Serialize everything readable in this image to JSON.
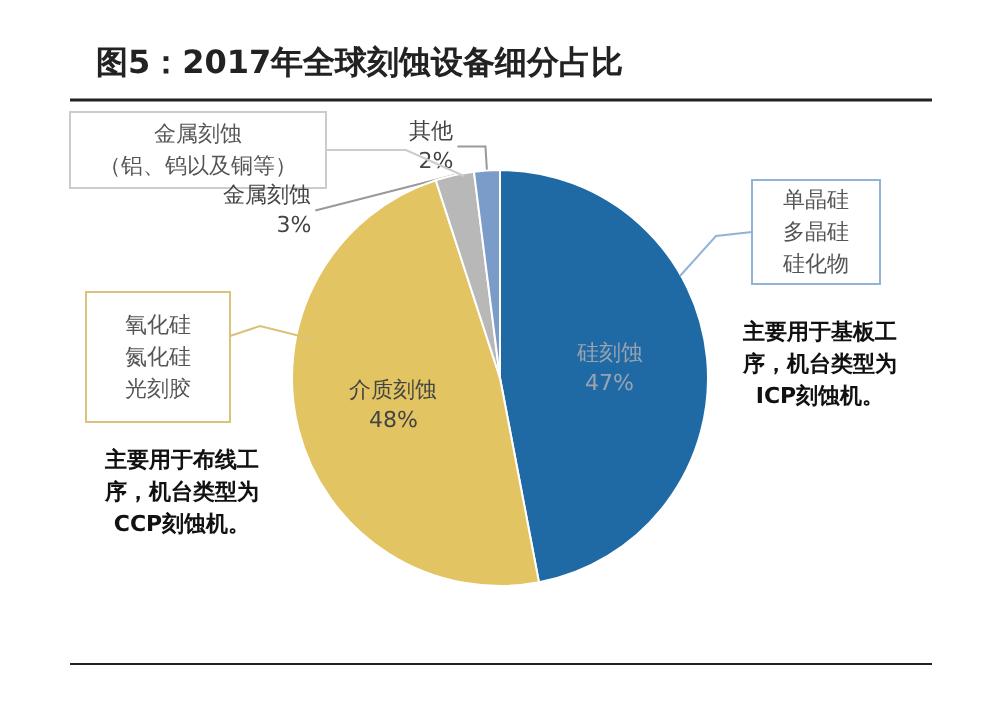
{
  "chart_data": {
    "type": "pie",
    "title": "图5：2017年全球刻蚀设备细分占比",
    "categories": [
      "硅刻蚀",
      "介质刻蚀",
      "金属刻蚀",
      "其他"
    ],
    "values": [
      47,
      48,
      3,
      2
    ],
    "value_labels": [
      "47%",
      "48%",
      "3%",
      "2%"
    ],
    "colors": [
      "#1f6aa5",
      "#e3c462",
      "#b8b8b8",
      "#7b9cc8"
    ],
    "legend": false,
    "annotations": [
      "金属刻蚀（铝、钨以及铜等）",
      "单晶硅多晶硅硅化物",
      "主要用于基板工序，机台类型为ICP刻蚀机。",
      "氧化硅氮化硅光刻胶",
      "主要用于布线工序，机台类型为CCP刻蚀机。"
    ]
  }
}
